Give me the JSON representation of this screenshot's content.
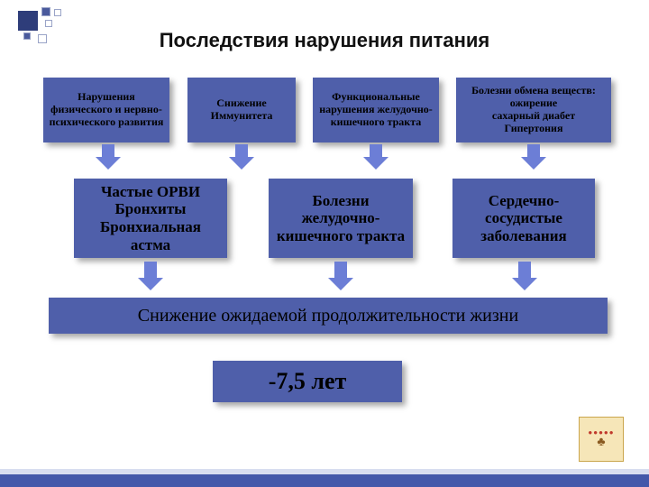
{
  "title": "Последствия нарушения питания",
  "colors": {
    "box_fill": "#4f5faa",
    "arrow": "#6c7ed6",
    "stripe": "#4458aa",
    "stripe_top": "#d8ddf0",
    "shadow": "rgba(0,0,0,0.35)"
  },
  "row1": [
    "Нарушения физического и нервно-психического развития",
    "Снижение Иммунитета",
    "Функциональные нарушения желудочно-кишечного тракта",
    "Болезни обмена веществ:\nожирение\nсахарный диабет\nГипертония"
  ],
  "row2": [
    "Частые ОРВИ\nБронхиты\nБронхиальная астма",
    "Болезни желудочно-кишечного тракта",
    "Сердечно-сосудистые заболевания"
  ],
  "row3": "Снижение ожидаемой продолжительности жизни",
  "row4": "-7,5 лет",
  "arrows": {
    "r1_to_r2": {
      "shaft_h": 14
    },
    "r2_to_r3": {
      "shaft_h": 18
    }
  }
}
